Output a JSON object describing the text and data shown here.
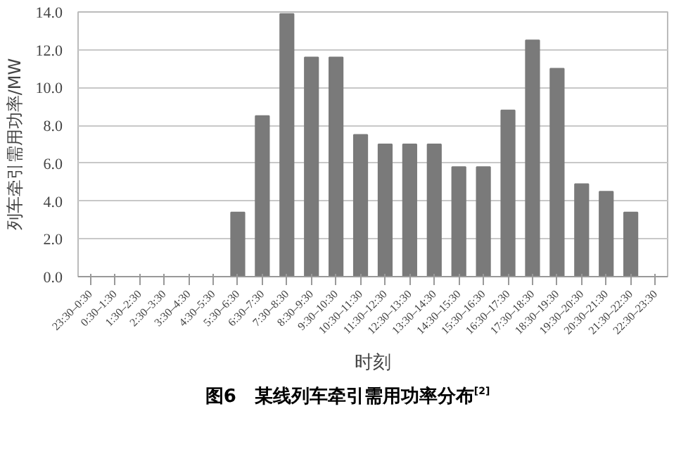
{
  "chart_data": {
    "type": "bar",
    "title": "图6　某线列车牵引需用功率分布$^{[2]}$",
    "xlabel": "时刻",
    "ylabel": "列车牵引需用功率/MW",
    "categories": [
      "23:30–0:30",
      "0:30–1:30",
      "1:30–2:30",
      "2:30–3:30",
      "3:30–4:30",
      "4:30–5:30",
      "5:30–6:30",
      "6:30–7:30",
      "7:30–8:30",
      "8:30–9:30",
      "9:30–10:30",
      "10:30–11:30",
      "11:30–12:30",
      "12:30–13:30",
      "13:30–14:30",
      "14:30–15:30",
      "15:30–16:30",
      "16:30–17:30",
      "17:30–18:30",
      "18:30–19:30",
      "19:30–20:30",
      "20:30–21:30",
      "21:30–22:30",
      "22:30–23:30"
    ],
    "values": [
      0,
      0,
      0,
      0,
      0,
      0,
      3.4,
      8.5,
      13.9,
      11.6,
      11.6,
      7.5,
      7.0,
      7.0,
      7.0,
      5.8,
      5.8,
      8.8,
      12.5,
      11.0,
      4.9,
      4.5,
      3.4,
      0
    ],
    "color": "#7a7a7a",
    "ylim": [
      0,
      14
    ],
    "yticks": [
      {
        "value": 0,
        "label": "0.0"
      },
      {
        "value": 2,
        "label": "2.0"
      },
      {
        "value": 4,
        "label": "4.0"
      },
      {
        "value": 6,
        "label": "6.0"
      },
      {
        "value": 8,
        "label": "8.0"
      },
      {
        "value": 10,
        "label": "10.0"
      },
      {
        "value": 12,
        "label": "12.0"
      },
      {
        "value": 14,
        "label": "14.0"
      }
    ],
    "grid": "y"
  }
}
